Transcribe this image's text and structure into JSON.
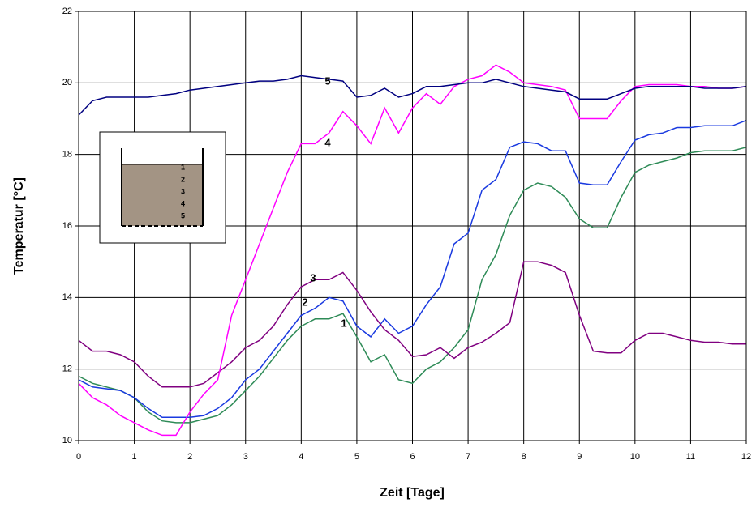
{
  "chart_data": {
    "type": "line",
    "x_label": "Zeit [Tage]",
    "y_label": "Temperatur [°C]",
    "xlim": [
      0,
      12
    ],
    "xticks": [
      0,
      1,
      2,
      3,
      4,
      5,
      6,
      7,
      8,
      9,
      10,
      11,
      12
    ],
    "ylim": [
      10,
      22
    ],
    "yticks": [
      10,
      12,
      14,
      16,
      18,
      20,
      22
    ],
    "grid": true,
    "x": [
      0,
      0.25,
      0.5,
      0.75,
      1,
      1.25,
      1.5,
      1.75,
      2,
      2.25,
      2.5,
      2.75,
      3,
      3.25,
      3.5,
      3.75,
      4,
      4.25,
      4.5,
      4.75,
      5,
      5.25,
      5.5,
      5.75,
      6,
      6.25,
      6.5,
      6.75,
      7,
      7.25,
      7.5,
      7.75,
      8,
      8.25,
      8.5,
      8.75,
      9,
      9.25,
      9.5,
      9.75,
      10,
      10.25,
      10.5,
      10.75,
      11,
      11.25,
      11.5,
      11.75,
      12
    ],
    "series": [
      {
        "name": "1",
        "color": "#2e8b57",
        "values": [
          11.8,
          11.6,
          11.5,
          11.4,
          11.2,
          10.8,
          10.55,
          10.5,
          10.5,
          10.6,
          10.7,
          11.0,
          11.4,
          11.8,
          12.3,
          12.8,
          13.2,
          13.4,
          13.4,
          13.55,
          12.9,
          12.2,
          12.4,
          11.7,
          11.6,
          12.0,
          12.2,
          12.6,
          13.1,
          14.5,
          15.2,
          16.3,
          17.0,
          17.2,
          17.1,
          16.8,
          16.2,
          15.95,
          15.95,
          16.8,
          17.5,
          17.7,
          17.8,
          17.9,
          18.05,
          18.1,
          18.1,
          18.1,
          18.2
        ]
      },
      {
        "name": "2",
        "color": "#1a3ae0",
        "values": [
          11.7,
          11.5,
          11.45,
          11.4,
          11.2,
          10.9,
          10.65,
          10.65,
          10.65,
          10.7,
          10.9,
          11.2,
          11.7,
          12.0,
          12.5,
          13.0,
          13.5,
          13.7,
          14.0,
          13.9,
          13.2,
          12.9,
          13.4,
          13.0,
          13.2,
          13.8,
          14.3,
          15.5,
          15.8,
          17.0,
          17.3,
          18.2,
          18.35,
          18.3,
          18.1,
          18.1,
          17.2,
          17.15,
          17.15,
          17.8,
          18.4,
          18.55,
          18.6,
          18.75,
          18.75,
          18.8,
          18.8,
          18.8,
          18.95
        ]
      },
      {
        "name": "3",
        "color": "#800080",
        "values": [
          12.8,
          12.5,
          12.5,
          12.4,
          12.2,
          11.8,
          11.5,
          11.5,
          11.5,
          11.6,
          11.9,
          12.2,
          12.6,
          12.8,
          13.2,
          13.8,
          14.3,
          14.5,
          14.5,
          14.7,
          14.2,
          13.6,
          13.1,
          12.8,
          12.35,
          12.4,
          12.6,
          12.3,
          12.6,
          12.75,
          13.0,
          13.3,
          15.0,
          15.0,
          14.9,
          14.7,
          13.5,
          12.5,
          12.45,
          12.45,
          12.8,
          13.0,
          13.0,
          12.9,
          12.8,
          12.75,
          12.75,
          12.7,
          12.7
        ]
      },
      {
        "name": "4",
        "color": "#ff00ff",
        "values": [
          11.6,
          11.2,
          11.0,
          10.7,
          10.5,
          10.3,
          10.15,
          10.15,
          10.8,
          11.3,
          11.7,
          13.5,
          14.5,
          15.5,
          16.5,
          17.5,
          18.3,
          18.3,
          18.6,
          19.2,
          18.8,
          18.3,
          19.3,
          18.6,
          19.3,
          19.7,
          19.4,
          19.9,
          20.1,
          20.2,
          20.5,
          20.3,
          20.0,
          19.95,
          19.9,
          19.8,
          19.0,
          19.0,
          19.0,
          19.5,
          19.9,
          19.95,
          19.95,
          19.95,
          19.9,
          19.9,
          19.85,
          19.85,
          19.9
        ]
      },
      {
        "name": "5",
        "color": "#000080",
        "values": [
          19.1,
          19.5,
          19.6,
          19.6,
          19.6,
          19.6,
          19.65,
          19.7,
          19.8,
          19.85,
          19.9,
          19.95,
          20.0,
          20.05,
          20.05,
          20.1,
          20.2,
          20.15,
          20.1,
          20.05,
          19.6,
          19.65,
          19.85,
          19.6,
          19.7,
          19.9,
          19.9,
          19.95,
          20.0,
          20.0,
          20.1,
          20.0,
          19.9,
          19.85,
          19.8,
          19.75,
          19.55,
          19.55,
          19.55,
          19.7,
          19.85,
          19.9,
          19.9,
          19.9,
          19.9,
          19.85,
          19.85,
          19.85,
          19.9
        ]
      }
    ]
  }
}
